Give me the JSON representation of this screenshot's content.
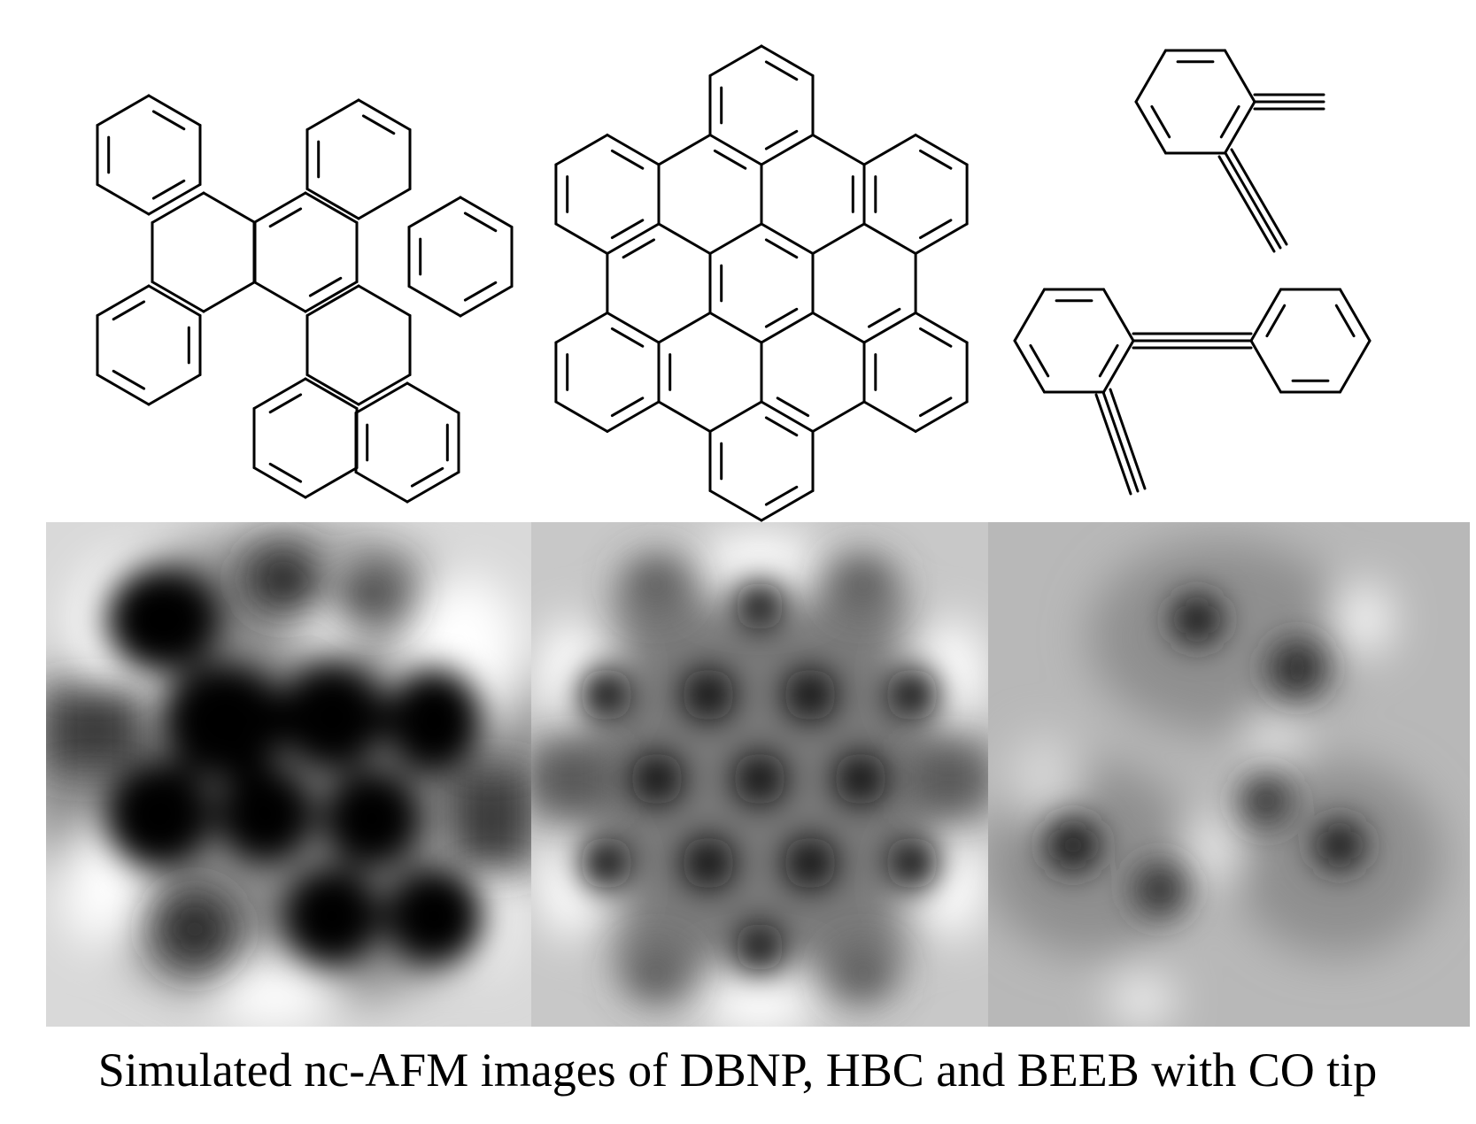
{
  "caption": "Simulated nc-AFM images of DBNP, HBC and BEEB with CO tip",
  "structures": [
    {
      "molecule": "DBNP",
      "panel": "left"
    },
    {
      "molecule": "HBC",
      "panel": "center"
    },
    {
      "molecule": "BEEB",
      "panel": "right"
    }
  ],
  "afm_images": [
    {
      "molecule": "DBNP",
      "panel": "left",
      "contrast": "strong"
    },
    {
      "molecule": "HBC",
      "panel": "center",
      "contrast": "medium"
    },
    {
      "molecule": "BEEB",
      "panel": "right",
      "contrast": "weak"
    }
  ],
  "colors": {
    "background": "#ffffff",
    "line": "#000000",
    "afm_dark": "#000000",
    "afm_light": "#ffffff",
    "afm_mid": "#a6a6a6"
  }
}
